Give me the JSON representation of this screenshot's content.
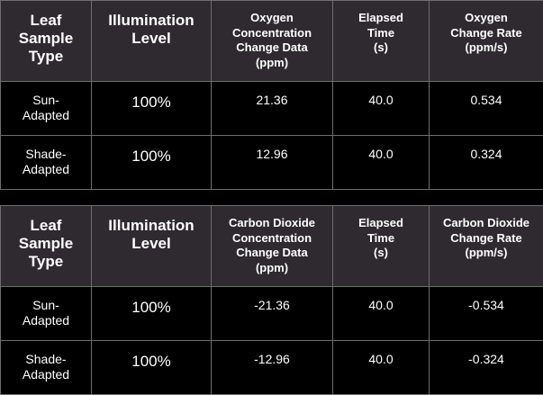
{
  "oxygen_table": {
    "headers": [
      "Leaf\nSample\nType",
      "Illumination\nLevel",
      "Oxygen\nConcentration\nChange Data\n(ppm)",
      "Elapsed\nTime\n(s)",
      "Oxygen\nChange Rate\n(ppm/s)"
    ],
    "rows": [
      {
        "type": "Sun-\nAdapted",
        "illumination": "100%",
        "change": "21.36",
        "time": "40.0",
        "rate": "0.534"
      },
      {
        "type": "Shade-\nAdapted",
        "illumination": "100%",
        "change": "12.96",
        "time": "40.0",
        "rate": "0.324"
      }
    ]
  },
  "co2_table": {
    "headers": [
      "Leaf\nSample\nType",
      "Illumination\nLevel",
      "Carbon Dioxide\nConcentration\nChange Data\n(ppm)",
      "Elapsed\nTime\n(s)",
      "Carbon Dioxide\nChange Rate\n(ppm/s)"
    ],
    "rows": [
      {
        "type": "Sun-\nAdapted",
        "illumination": "100%",
        "change": "-21.36",
        "time": "40.0",
        "rate": "-0.534"
      },
      {
        "type": "Shade-\nAdapted",
        "illumination": "100%",
        "change": "-12.96",
        "time": "40.0",
        "rate": "-0.324"
      }
    ]
  },
  "colors": {
    "header_background": "#2e2a2f",
    "body_background": "#000000",
    "text": "#ffffff",
    "border": "#6e6e6e"
  }
}
